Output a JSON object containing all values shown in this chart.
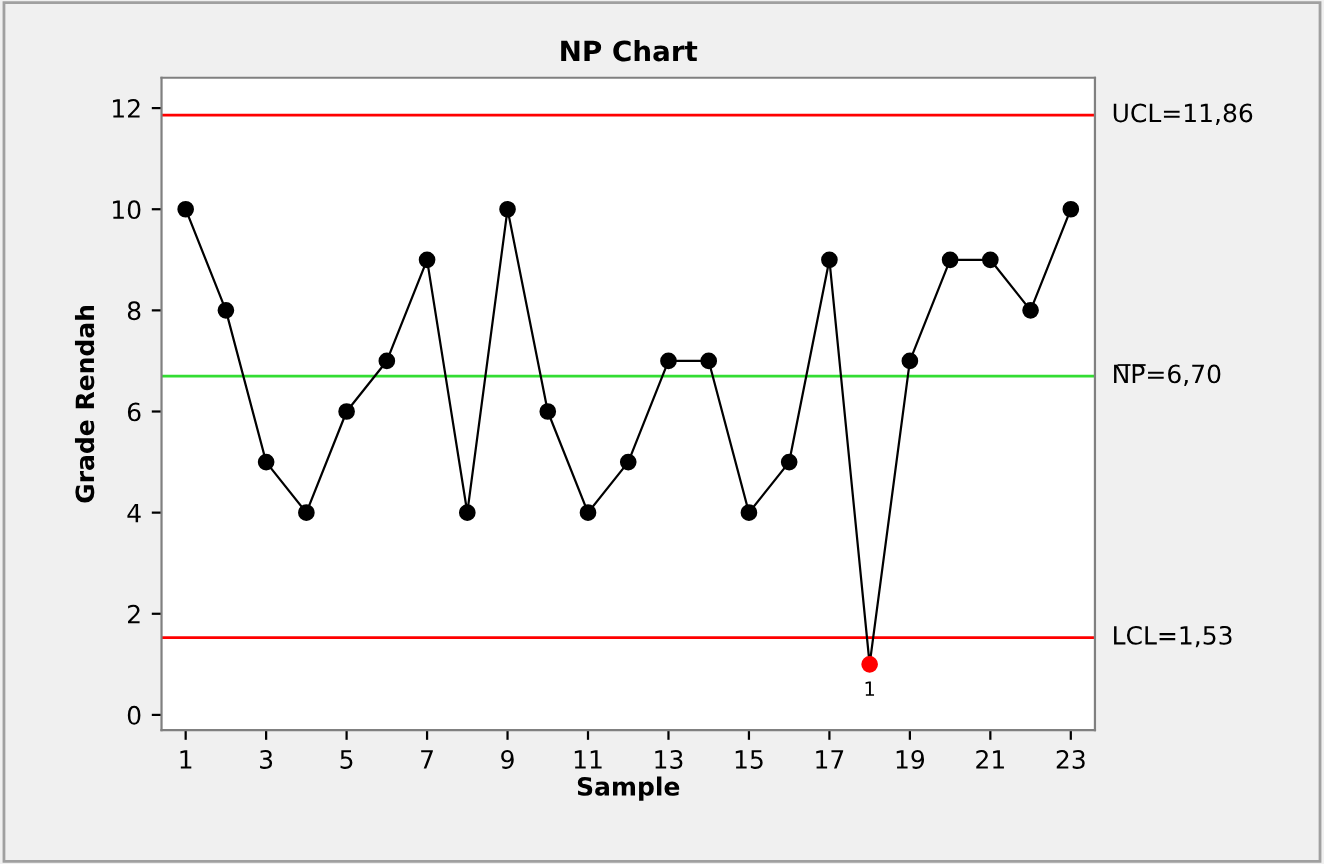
{
  "chart_data": {
    "type": "line",
    "title": "NP Chart",
    "xlabel": "Sample",
    "ylabel": "Grade Rendah",
    "x": [
      1,
      2,
      3,
      4,
      5,
      6,
      7,
      8,
      9,
      10,
      11,
      12,
      13,
      14,
      15,
      16,
      17,
      18,
      19,
      20,
      21,
      22,
      23
    ],
    "series": [
      {
        "color": "#000000",
        "values": [
          10,
          8,
          5,
          4,
          6,
          7,
          9,
          4,
          10,
          6,
          4,
          5,
          7,
          7,
          4,
          5,
          9,
          1,
          7,
          9,
          9,
          8,
          10
        ],
        "colors": [
          "#000000",
          "#000000",
          "#000000",
          "#000000",
          "#000000",
          "#000000",
          "#000000",
          "#000000",
          "#000000",
          "#000000",
          "#000000",
          "#000000",
          "#000000",
          "#000000",
          "#000000",
          "#000000",
          "#000000",
          "#ff0000",
          "#000000",
          "#000000",
          "#000000",
          "#000000",
          "#000000"
        ]
      }
    ],
    "marker": "circle",
    "line_style": "solid",
    "xlim": [
      0.4,
      23.6
    ],
    "xticks": [
      1,
      3,
      5,
      7,
      9,
      11,
      13,
      15,
      17,
      19,
      21,
      23
    ],
    "ylim": [
      -0.3,
      12.6
    ],
    "yticks": [
      0,
      2,
      4,
      6,
      8,
      10,
      12
    ],
    "ref_lines": [
      {
        "axis": "y",
        "value": 11.86,
        "label": "UCL=11,86",
        "color": "#ff0000"
      },
      {
        "axis": "y",
        "value": 6.7,
        "label": "N̅P̅=6,70",
        "color": "#33dd33"
      },
      {
        "axis": "y",
        "value": 1.53,
        "label": "LCL=1,53",
        "color": "#ff0000"
      }
    ],
    "annotations": [
      {
        "text": "1",
        "x": 18,
        "y": 1
      }
    ],
    "grid": false,
    "legend": false
  }
}
